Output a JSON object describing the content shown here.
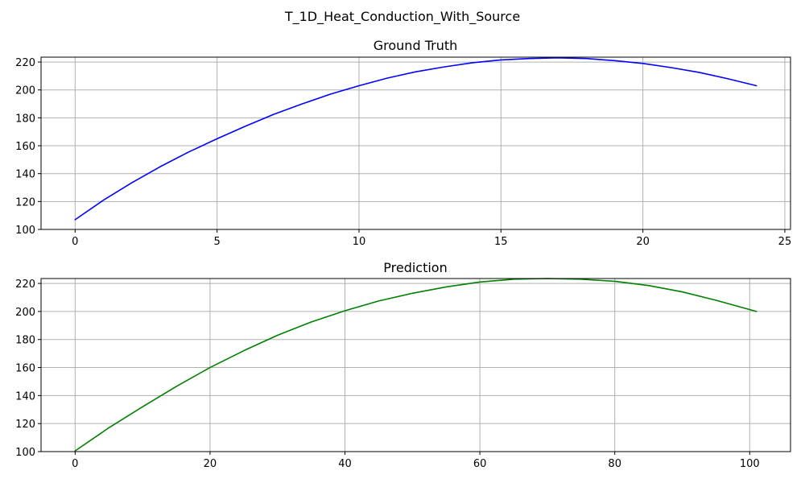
{
  "figure": {
    "suptitle": "T_1D_Heat_Conduction_With_Source"
  },
  "chart_data": [
    {
      "type": "line",
      "title": "Ground Truth",
      "xlabel": "",
      "ylabel": "",
      "xlim": [
        -1.2,
        25.2
      ],
      "ylim": [
        100,
        223.5
      ],
      "xticks": [
        0,
        5,
        10,
        15,
        20,
        25
      ],
      "yticks": [
        100,
        120,
        140,
        160,
        180,
        200,
        220
      ],
      "grid": true,
      "series": [
        {
          "color": "#0000ff",
          "x": [
            0,
            1,
            2,
            3,
            4,
            5,
            6,
            7,
            8,
            9,
            10,
            11,
            12,
            13,
            14,
            15,
            16,
            17,
            18,
            19,
            20,
            21,
            22,
            23,
            24
          ],
          "y": [
            107,
            121,
            133.5,
            145,
            155.5,
            165,
            174,
            182.5,
            190,
            197,
            203,
            208.5,
            213,
            216.5,
            219.5,
            221.5,
            222.5,
            223,
            222.5,
            221,
            219,
            216,
            212.5,
            208,
            203
          ]
        }
      ]
    },
    {
      "type": "line",
      "title": "Prediction",
      "xlabel": "",
      "ylabel": "",
      "xlim": [
        -5.05,
        106.05
      ],
      "ylim": [
        100,
        223.5
      ],
      "xticks": [
        0,
        20,
        40,
        60,
        80,
        100
      ],
      "yticks": [
        100,
        120,
        140,
        160,
        180,
        200,
        220
      ],
      "grid": true,
      "series": [
        {
          "color": "#008000",
          "x": [
            0,
            5,
            10,
            15,
            20,
            25,
            30,
            35,
            40,
            45,
            50,
            55,
            60,
            65,
            70,
            75,
            80,
            85,
            90,
            95,
            101
          ],
          "y": [
            100.5,
            117,
            132,
            146.5,
            160,
            172,
            183,
            192.5,
            200.5,
            207.5,
            213,
            217.5,
            221,
            223,
            223.5,
            223,
            221.5,
            218.5,
            214,
            208,
            200
          ]
        }
      ]
    }
  ]
}
